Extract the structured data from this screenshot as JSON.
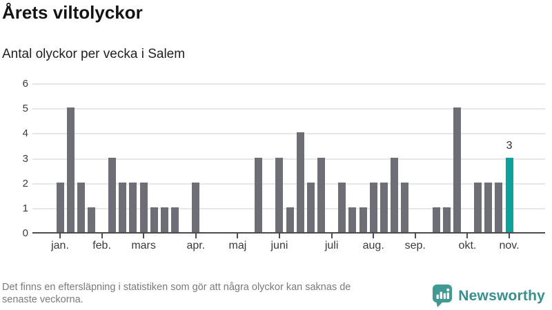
{
  "title": "Årets viltolyckor",
  "subtitle": "Antal olyckor per vecka i Salem",
  "chart_data": {
    "type": "bar",
    "title": "Årets viltolyckor",
    "subtitle": "Antal olyckor per vecka i Salem",
    "x_unit": "vecka",
    "values": [
      2,
      5,
      2,
      1,
      0,
      3,
      2,
      2,
      2,
      1,
      1,
      1,
      0,
      2,
      0,
      0,
      0,
      0,
      0,
      3,
      0,
      3,
      1,
      4,
      2,
      3,
      0,
      2,
      1,
      1,
      2,
      2,
      3,
      2,
      0,
      0,
      1,
      1,
      5,
      0,
      2,
      2,
      2,
      3
    ],
    "months": [
      {
        "label": "jan.",
        "week": 0
      },
      {
        "label": "feb.",
        "week": 4
      },
      {
        "label": "mars",
        "week": 8
      },
      {
        "label": "apr.",
        "week": 13
      },
      {
        "label": "maj",
        "week": 17
      },
      {
        "label": "juni",
        "week": 21
      },
      {
        "label": "juli",
        "week": 26
      },
      {
        "label": "aug.",
        "week": 30
      },
      {
        "label": "sep.",
        "week": 34
      },
      {
        "label": "okt.",
        "week": 39
      },
      {
        "label": "nov.",
        "week": 43
      }
    ],
    "yticks": [
      0,
      1,
      2,
      3,
      4,
      5,
      6
    ],
    "ylim": [
      0,
      6
    ],
    "grid": true,
    "legend_position": "none",
    "bar_color": "#6e6e76",
    "highlight": {
      "index": 43,
      "value": 3,
      "label": "3",
      "color": "#0aa29a"
    }
  },
  "footer": {
    "note_lines": [
      "Det finns en eftersläpning i statistiken som gör att några olyckor kan saknas de",
      "senaste veckorna."
    ],
    "brand": "Newsworthy"
  },
  "icons": {
    "logo": "newsworthy-speech-bubble-bar-chart-icon"
  },
  "colors": {
    "bar": "#6e6e76",
    "highlight": "#0aa29a",
    "grid": "#e7e7e7",
    "axis": "#4b4b4b",
    "text": "#141414",
    "muted": "#7a7a7a",
    "brand_teal": "#35918c",
    "logo_teal": "#3f9a91"
  }
}
